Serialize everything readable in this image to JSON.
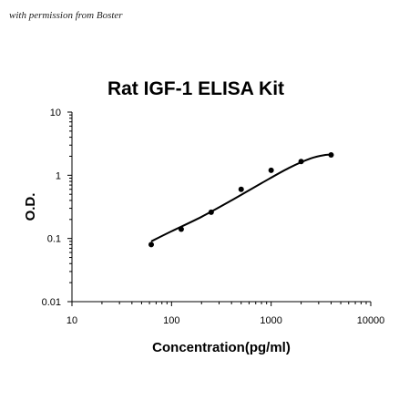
{
  "watermark": "with permission from Boster",
  "chart_data": {
    "type": "scatter",
    "title": "Rat IGF-1 ELISA Kit",
    "xlabel": "Concentration(pg/ml)",
    "ylabel": "O.D.",
    "x_scale": "log",
    "y_scale": "log",
    "xlim": [
      10,
      10000
    ],
    "ylim": [
      0.01,
      10
    ],
    "x_ticks": [
      "10",
      "100",
      "1000",
      "10000"
    ],
    "y_ticks": [
      "0.01",
      "0.1",
      "1",
      "10"
    ],
    "grid": false,
    "legend": "none",
    "series": [
      {
        "x": [
          62.5,
          125,
          250,
          500,
          1000,
          2000,
          4000
        ],
        "y": [
          0.08,
          0.14,
          0.26,
          0.6,
          1.2,
          1.65,
          2.1
        ]
      }
    ],
    "fit_curve": {
      "x": [
        62.5,
        100,
        200,
        400,
        800,
        1500,
        2500,
        3500,
        4000
      ],
      "y": [
        0.09,
        0.13,
        0.22,
        0.4,
        0.75,
        1.3,
        1.85,
        2.1,
        2.1
      ]
    },
    "colors": {
      "points": "#000000",
      "curve": "#000000",
      "axes": "#000000"
    }
  }
}
